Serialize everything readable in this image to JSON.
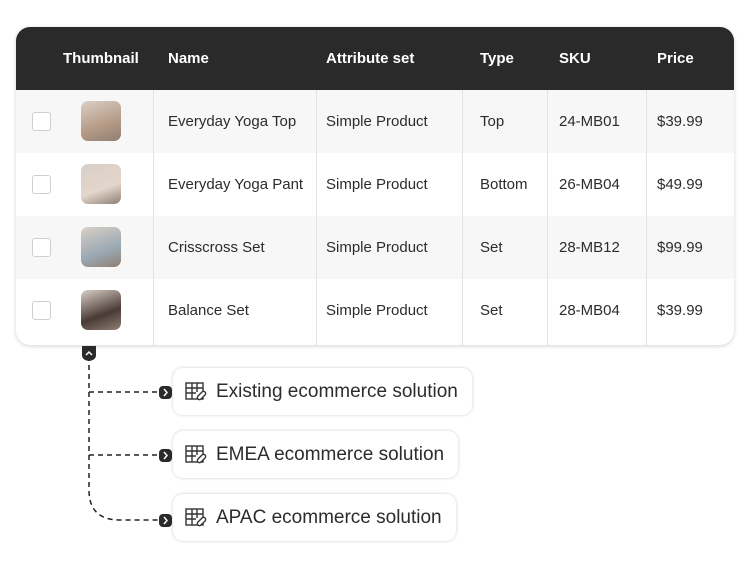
{
  "table": {
    "headers": [
      "Thumbnail",
      "Name",
      "Attribute set",
      "Type",
      "SKU",
      "Price"
    ],
    "rows": [
      {
        "name": "Everyday Yoga Top",
        "attribute_set": "Simple Product",
        "type": "Top",
        "sku": "24-MB01",
        "price": "$39.99",
        "thumb_color": "#b59a86"
      },
      {
        "name": "Everyday Yoga Pant",
        "attribute_set": "Simple Product",
        "type": "Bottom",
        "sku": "26-MB04",
        "price": "$49.99",
        "thumb_color": "#e3d6cc"
      },
      {
        "name": "Crisscross Set",
        "attribute_set": "Simple Product",
        "type": "Set",
        "sku": "28-MB12",
        "price": "$99.99",
        "thumb_color": "#9aa9b3"
      },
      {
        "name": "Balance Set",
        "attribute_set": "Simple Product",
        "type": "Set",
        "sku": "28-MB04",
        "price": "$39.99",
        "thumb_color": "#4a3a36"
      }
    ]
  },
  "connections": {
    "icon": "table-link-icon",
    "items": [
      {
        "label": "Existing ecommerce solution"
      },
      {
        "label": "EMEA ecommerce solution"
      },
      {
        "label": "APAC ecommerce solution"
      }
    ]
  }
}
